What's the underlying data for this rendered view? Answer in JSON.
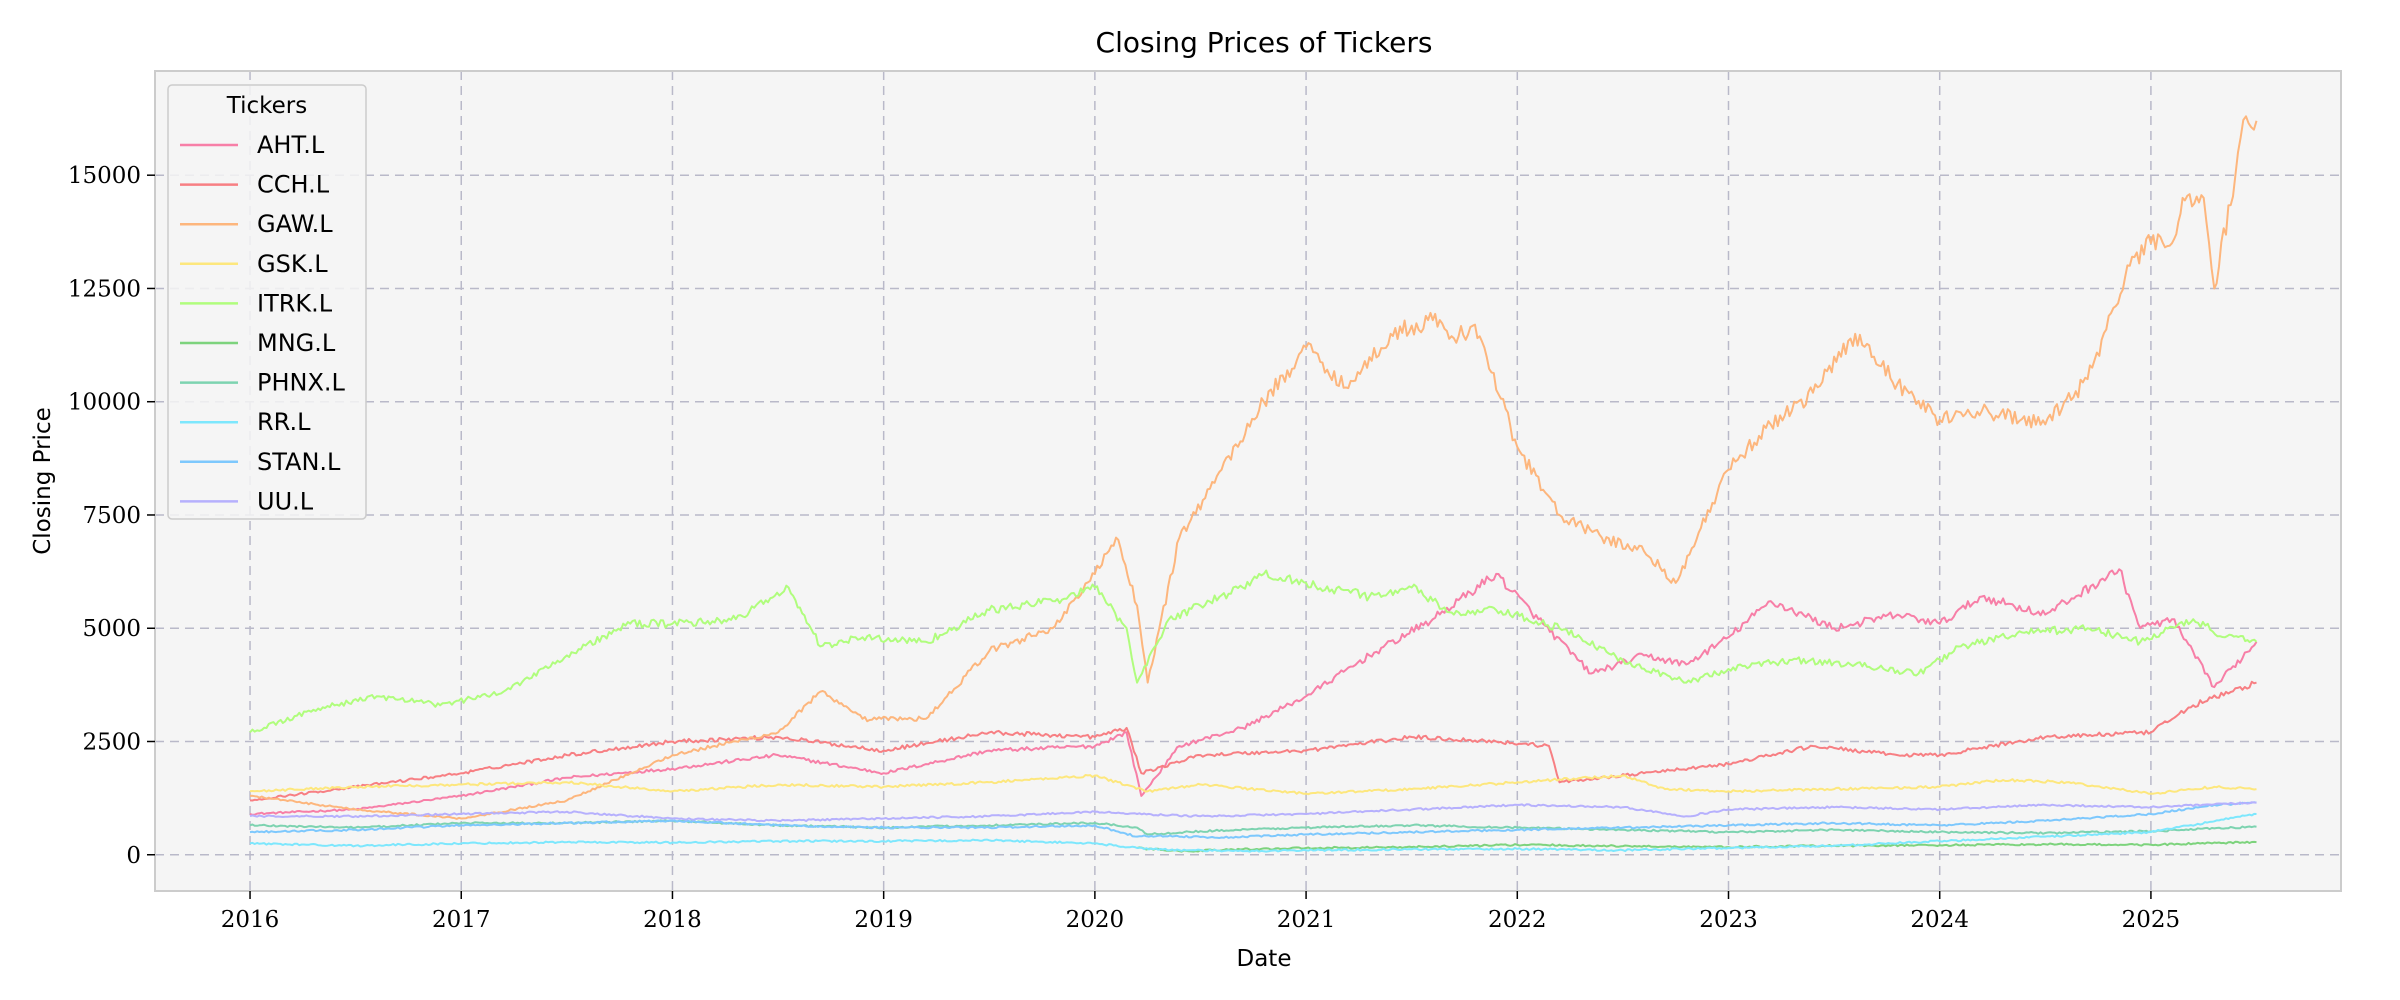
{
  "chart_data": {
    "type": "line",
    "title": "Closing Prices of Tickers",
    "xlabel": "Date",
    "ylabel": "Closing Price",
    "xlim": [
      2015.55,
      2025.9
    ],
    "ylim": [
      -800,
      17300
    ],
    "x_ticks": [
      2016,
      2017,
      2018,
      2019,
      2020,
      2021,
      2022,
      2023,
      2024,
      2025
    ],
    "x_tick_labels": [
      "2016",
      "2017",
      "2018",
      "2019",
      "2020",
      "2021",
      "2022",
      "2023",
      "2024",
      "2025"
    ],
    "y_ticks": [
      0,
      2500,
      5000,
      7500,
      10000,
      12500,
      15000
    ],
    "y_tick_labels": [
      "0",
      "2500",
      "5000",
      "7500",
      "10000",
      "12500",
      "15000"
    ],
    "grid": true,
    "legend": {
      "title": "Tickers",
      "position": "top-left"
    },
    "series": [
      {
        "name": "AHT.L",
        "color": "#f77fa7",
        "x": [
          2016.0,
          2016.5,
          2017.0,
          2017.5,
          2018.0,
          2018.5,
          2019.0,
          2019.5,
          2020.0,
          2020.15,
          2020.22,
          2020.4,
          2020.7,
          2021.0,
          2021.3,
          2021.6,
          2021.9,
          2022.1,
          2022.35,
          2022.6,
          2022.8,
          2023.0,
          2023.2,
          2023.5,
          2023.8,
          2024.0,
          2024.2,
          2024.5,
          2024.85,
          2024.95,
          2025.1,
          2025.3,
          2025.5
        ],
        "y": [
          900,
          1000,
          1300,
          1700,
          1900,
          2200,
          1800,
          2300,
          2400,
          2700,
          1300,
          2400,
          2800,
          3500,
          4400,
          5200,
          6200,
          5200,
          4000,
          4400,
          4200,
          4800,
          5600,
          5000,
          5300,
          5100,
          5700,
          5300,
          6300,
          5000,
          5200,
          3700,
          4700
        ]
      },
      {
        "name": "CCH.L",
        "color": "#f77f83",
        "x": [
          2016.0,
          2016.5,
          2017.0,
          2017.5,
          2018.0,
          2018.5,
          2019.0,
          2019.5,
          2020.0,
          2020.15,
          2020.22,
          2020.5,
          2021.0,
          2021.5,
          2021.9,
          2022.15,
          2022.2,
          2022.6,
          2023.0,
          2023.4,
          2023.8,
          2024.0,
          2024.5,
          2025.0,
          2025.2,
          2025.5
        ],
        "y": [
          1200,
          1500,
          1800,
          2200,
          2500,
          2600,
          2300,
          2700,
          2600,
          2800,
          1800,
          2200,
          2300,
          2600,
          2500,
          2400,
          1600,
          1800,
          2000,
          2400,
          2200,
          2200,
          2600,
          2700,
          3300,
          3800
        ]
      },
      {
        "name": "GAW.L",
        "color": "#fdb67d",
        "x": [
          2016.0,
          2016.5,
          2017.0,
          2017.5,
          2018.0,
          2018.5,
          2018.7,
          2018.9,
          2019.2,
          2019.5,
          2019.8,
          2020.0,
          2020.1,
          2020.2,
          2020.25,
          2020.4,
          2020.6,
          2020.8,
          2021.0,
          2021.2,
          2021.4,
          2021.6,
          2021.7,
          2021.8,
          2022.0,
          2022.2,
          2022.4,
          2022.6,
          2022.75,
          2023.0,
          2023.2,
          2023.4,
          2023.6,
          2023.8,
          2024.0,
          2024.2,
          2024.5,
          2024.7,
          2024.9,
          2025.0,
          2025.1,
          2025.15,
          2025.25,
          2025.3,
          2025.4,
          2025.45,
          2025.5
        ],
        "y": [
          1300,
          1000,
          800,
          1200,
          2200,
          2700,
          3600,
          3000,
          3000,
          4500,
          5000,
          6200,
          7000,
          5500,
          3800,
          7000,
          8500,
          10000,
          11200,
          10300,
          11500,
          11800,
          11400,
          11700,
          9000,
          7500,
          7000,
          6700,
          6000,
          8500,
          9500,
          10200,
          11500,
          10400,
          9600,
          9800,
          9500,
          10500,
          13000,
          13500,
          13500,
          14500,
          14500,
          12500,
          15000,
          16300,
          16200
        ]
      },
      {
        "name": "GSK.L",
        "color": "#fde77d",
        "x": [
          2016.0,
          2016.5,
          2017.0,
          2017.5,
          2018.0,
          2018.5,
          2019.0,
          2019.5,
          2020.0,
          2020.25,
          2020.5,
          2021.0,
          2021.5,
          2022.0,
          2022.5,
          2022.7,
          2023.0,
          2023.5,
          2024.0,
          2024.3,
          2024.6,
          2025.0,
          2025.3,
          2025.5
        ],
        "y": [
          1400,
          1500,
          1550,
          1600,
          1400,
          1550,
          1500,
          1600,
          1750,
          1400,
          1550,
          1350,
          1450,
          1600,
          1750,
          1450,
          1400,
          1450,
          1500,
          1650,
          1600,
          1350,
          1500,
          1450
        ]
      },
      {
        "name": "ITRK.L",
        "color": "#b0fd7d",
        "x": [
          2016.0,
          2016.3,
          2016.6,
          2016.9,
          2017.2,
          2017.5,
          2017.8,
          2018.0,
          2018.3,
          2018.55,
          2018.7,
          2018.9,
          2019.2,
          2019.5,
          2019.8,
          2020.0,
          2020.15,
          2020.2,
          2020.35,
          2020.5,
          2020.7,
          2020.8,
          2021.0,
          2021.3,
          2021.5,
          2021.7,
          2021.9,
          2022.2,
          2022.5,
          2022.8,
          2023.0,
          2023.3,
          2023.6,
          2023.9,
          2024.1,
          2024.4,
          2024.7,
          2024.95,
          2025.2,
          2025.35,
          2025.5
        ],
        "y": [
          2700,
          3200,
          3500,
          3300,
          3600,
          4400,
          5100,
          5100,
          5200,
          5900,
          4600,
          4800,
          4700,
          5400,
          5600,
          5900,
          5000,
          3800,
          5200,
          5500,
          5900,
          6200,
          6000,
          5700,
          5900,
          5300,
          5400,
          5000,
          4300,
          3800,
          4100,
          4300,
          4200,
          4000,
          4600,
          4900,
          5000,
          4700,
          5200,
          4800,
          4700
        ]
      },
      {
        "name": "MNG.L",
        "color": "#7dd37d",
        "x": [
          2020.2,
          2020.4,
          2020.7,
          2021.0,
          2021.5,
          2022.0,
          2022.5,
          2023.0,
          2023.5,
          2024.0,
          2024.5,
          2025.0,
          2025.5
        ],
        "y": [
          150,
          80,
          120,
          150,
          170,
          220,
          190,
          170,
          200,
          210,
          230,
          220,
          280
        ]
      },
      {
        "name": "PHNX.L",
        "color": "#7dd3b0",
        "x": [
          2016.0,
          2016.5,
          2017.0,
          2017.5,
          2018.0,
          2018.5,
          2019.0,
          2019.5,
          2020.0,
          2020.2,
          2020.25,
          2020.5,
          2021.0,
          2021.5,
          2022.0,
          2022.5,
          2023.0,
          2023.5,
          2024.0,
          2024.5,
          2025.0,
          2025.5
        ],
        "y": [
          650,
          600,
          700,
          700,
          750,
          650,
          600,
          650,
          700,
          600,
          450,
          520,
          600,
          650,
          600,
          550,
          500,
          550,
          500,
          480,
          520,
          620
        ]
      },
      {
        "name": "RR.L",
        "color": "#7de7fd",
        "x": [
          2016.0,
          2016.5,
          2017.0,
          2017.5,
          2018.0,
          2018.5,
          2019.0,
          2019.5,
          2020.0,
          2020.2,
          2020.4,
          2020.7,
          2021.0,
          2021.5,
          2022.0,
          2022.5,
          2023.0,
          2023.5,
          2024.0,
          2024.5,
          2025.0,
          2025.5
        ],
        "y": [
          250,
          200,
          250,
          280,
          270,
          300,
          300,
          320,
          250,
          150,
          100,
          80,
          100,
          120,
          130,
          100,
          150,
          200,
          300,
          400,
          500,
          900
        ]
      },
      {
        "name": "STAN.L",
        "color": "#7dc8fd",
        "x": [
          2016.0,
          2016.5,
          2017.0,
          2017.5,
          2018.0,
          2018.5,
          2019.0,
          2019.5,
          2020.0,
          2020.2,
          2020.3,
          2020.6,
          2021.0,
          2021.5,
          2022.0,
          2022.5,
          2023.0,
          2023.5,
          2024.0,
          2024.5,
          2025.0,
          2025.3,
          2025.5
        ],
        "y": [
          500,
          550,
          650,
          700,
          750,
          650,
          600,
          600,
          650,
          400,
          420,
          380,
          450,
          500,
          550,
          600,
          650,
          700,
          650,
          750,
          900,
          1100,
          1150
        ]
      },
      {
        "name": "UU.L",
        "color": "#b6b0fd",
        "x": [
          2016.0,
          2016.5,
          2017.0,
          2017.5,
          2018.0,
          2018.5,
          2019.0,
          2019.5,
          2020.0,
          2020.2,
          2020.5,
          2021.0,
          2021.5,
          2022.0,
          2022.5,
          2022.8,
          2023.0,
          2023.5,
          2024.0,
          2024.5,
          2025.0,
          2025.5
        ],
        "y": [
          850,
          850,
          900,
          950,
          800,
          750,
          800,
          850,
          950,
          900,
          850,
          900,
          1000,
          1100,
          1050,
          850,
          1000,
          1050,
          1000,
          1100,
          1050,
          1150
        ]
      }
    ]
  }
}
